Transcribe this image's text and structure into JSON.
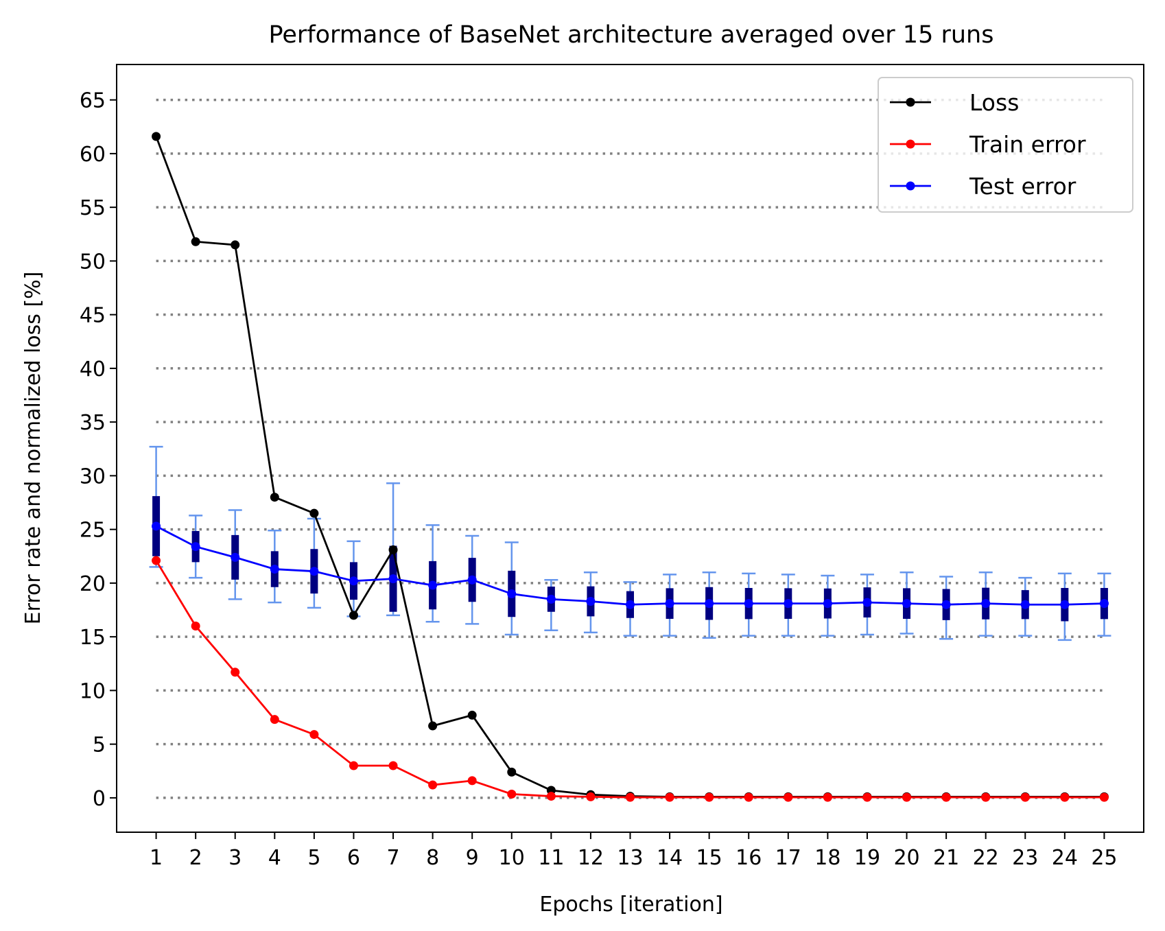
{
  "chart_data": {
    "type": "line",
    "title": "Performance of BaseNet architecture averaged over 15 runs",
    "xlabel": "Epochs [iteration]",
    "ylabel": "Error rate and normalized loss [%]",
    "x": [
      1,
      2,
      3,
      4,
      5,
      6,
      7,
      8,
      9,
      10,
      11,
      12,
      13,
      14,
      15,
      16,
      17,
      18,
      19,
      20,
      21,
      22,
      23,
      24,
      25
    ],
    "xticks": [
      "1",
      "2",
      "3",
      "4",
      "5",
      "6",
      "7",
      "8",
      "9",
      "10",
      "11",
      "12",
      "13",
      "14",
      "15",
      "16",
      "17",
      "18",
      "19",
      "20",
      "21",
      "22",
      "23",
      "24",
      "25"
    ],
    "yticks": [
      "0",
      "5",
      "10",
      "15",
      "20",
      "25",
      "30",
      "35",
      "40",
      "45",
      "50",
      "55",
      "60",
      "65"
    ],
    "xlim": [
      0,
      26
    ],
    "ylim": [
      -3.2,
      68.3
    ],
    "grid": "horizontal dotted",
    "legend_position": "top-right",
    "series": [
      {
        "name": "Loss",
        "color": "#000000",
        "values": [
          61.6,
          51.8,
          51.5,
          28.0,
          26.5,
          17.0,
          23.1,
          6.7,
          7.7,
          2.4,
          0.7,
          0.3,
          0.15,
          0.1,
          0.1,
          0.1,
          0.1,
          0.1,
          0.1,
          0.1,
          0.1,
          0.1,
          0.1,
          0.1,
          0.1
        ]
      },
      {
        "name": "Train error",
        "color": "#ff0000",
        "values": [
          22.1,
          16.0,
          11.7,
          7.3,
          5.9,
          3.0,
          3.0,
          1.2,
          1.6,
          0.35,
          0.15,
          0.1,
          0.05,
          0.05,
          0.05,
          0.05,
          0.05,
          0.05,
          0.05,
          0.05,
          0.05,
          0.05,
          0.05,
          0.05,
          0.05
        ]
      },
      {
        "name": "Test error",
        "color": "#0000ff",
        "values": [
          25.3,
          23.4,
          22.4,
          21.3,
          21.1,
          20.2,
          20.4,
          19.8,
          20.3,
          19.0,
          18.5,
          18.3,
          18.0,
          18.1,
          18.1,
          18.1,
          18.1,
          18.1,
          18.2,
          18.1,
          18.0,
          18.1,
          18.0,
          18.0,
          18.1
        ],
        "error_outer_color": "#6495ed",
        "error_inner_color": "#000080",
        "error_outer": [
          [
            21.5,
            32.7
          ],
          [
            20.5,
            26.3
          ],
          [
            18.5,
            26.8
          ],
          [
            18.2,
            24.9
          ],
          [
            17.7,
            26.0
          ],
          [
            16.9,
            23.9
          ],
          [
            17.0,
            29.3
          ],
          [
            16.4,
            25.4
          ],
          [
            16.2,
            24.4
          ],
          [
            15.2,
            23.8
          ],
          [
            15.6,
            20.3
          ],
          [
            15.4,
            21.0
          ],
          [
            15.1,
            20.1
          ],
          [
            15.1,
            20.8
          ],
          [
            14.9,
            21.0
          ],
          [
            15.1,
            20.9
          ],
          [
            15.1,
            20.8
          ],
          [
            15.1,
            20.7
          ],
          [
            15.2,
            20.8
          ],
          [
            15.3,
            21.0
          ],
          [
            14.8,
            20.6
          ],
          [
            15.1,
            21.0
          ],
          [
            15.1,
            20.5
          ],
          [
            14.7,
            20.9
          ],
          [
            15.1,
            20.9
          ]
        ]
      }
    ]
  }
}
